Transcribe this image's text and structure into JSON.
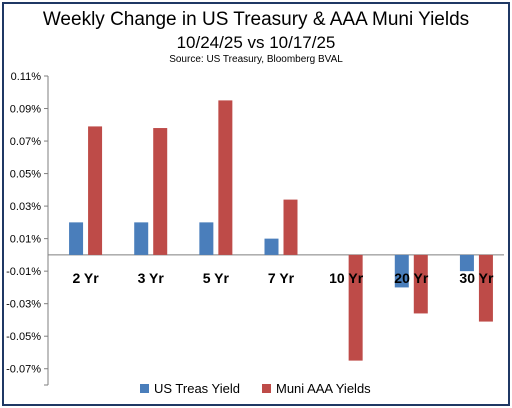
{
  "chart_data": {
    "type": "bar",
    "title": "Weekly Change in US Treasury & AAA Muni Yields",
    "subtitle": "10/24/25 vs 10/17/25",
    "source": "Source: US Treasury, Bloomberg BVAL",
    "categories": [
      "2 Yr",
      "3 Yr",
      "5 Yr",
      "7 Yr",
      "10 Yr",
      "20 Yr",
      "30 Yr"
    ],
    "series": [
      {
        "name": "US Treas Yield",
        "color": "#4a7ebb",
        "values": [
          0.02,
          0.02,
          0.02,
          0.01,
          0.0,
          -0.02,
          -0.01
        ]
      },
      {
        "name": "Muni AAA Yields",
        "color": "#be4b48",
        "values": [
          0.079,
          0.078,
          0.095,
          0.034,
          -0.065,
          -0.036,
          -0.041
        ]
      }
    ],
    "ylim": [
      -0.08,
      0.11
    ],
    "yticks": [
      0.11,
      0.09,
      0.07,
      0.05,
      0.03,
      0.01,
      -0.01,
      -0.03,
      -0.05,
      -0.07
    ],
    "ytick_labels": [
      "0.11%",
      "0.09%",
      "0.07%",
      "0.05%",
      "0.03%",
      "0.01%",
      "-0.01%",
      "-0.03%",
      "-0.05%",
      "-0.07%"
    ],
    "grid": false,
    "legend": "bottom",
    "xlabel": "",
    "ylabel": ""
  }
}
